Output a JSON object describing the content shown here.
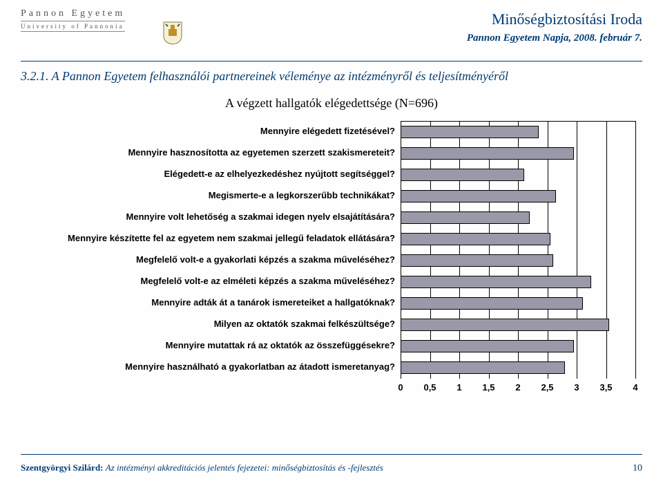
{
  "header": {
    "uni_hu": "Pannon Egyetem",
    "uni_en": "University of Pannonia",
    "dept": "Minőségbiztosítási Iroda",
    "date": "Pannon Egyetem Napja, 2008. február 7."
  },
  "section_title": "3.2.1. A Pannon Egyetem felhasználói partnereinek véleménye az intézményről és teljesítményéről",
  "subtitle": "A végzett hallgatók elégedettsége (N=696)",
  "chart": {
    "type": "horizontal-bar",
    "x_min": 0,
    "x_max": 4,
    "tick_step": 0.5,
    "ticks": [
      "0",
      "0,5",
      "1",
      "1,5",
      "2",
      "2,5",
      "3",
      "3,5",
      "4"
    ],
    "bar_color": "#9999a8",
    "bar_border": "#000000",
    "grid_color": "#000000",
    "background": "#ffffff",
    "label_fontsize": 13,
    "label_fontweight": "bold",
    "questions": [
      {
        "label": "Mennyire elégedett fizetésével?",
        "value": 2.35
      },
      {
        "label": "Mennyire hasznosította az egyetemen szerzett szakismereteit?",
        "value": 2.95
      },
      {
        "label": "Elégedett-e az elhelyezkedéshez nyújtott segítséggel?",
        "value": 2.1
      },
      {
        "label": "Megismerte-e a legkorszerűbb technikákat?",
        "value": 2.65
      },
      {
        "label": "Mennyire volt lehetőség a szakmai idegen nyelv elsajátítására?",
        "value": 2.2
      },
      {
        "label": "Mennyire készítette fel az egyetem nem szakmai jellegű feladatok ellátására?",
        "value": 2.55
      },
      {
        "label": "Megfelelő volt-e a gyakorlati képzés a szakma műveléséhez?",
        "value": 2.6
      },
      {
        "label": "Megfelelő volt-e az elméleti képzés a szakma műveléséhez?",
        "value": 3.25
      },
      {
        "label": "Mennyire adták át a tanárok ismereteiket a hallgatóknak?",
        "value": 3.1
      },
      {
        "label": "Milyen az oktatók szakmai felkészültsége?",
        "value": 3.55
      },
      {
        "label": "Mennyire mutattak rá az oktatók az összefüggésekre?",
        "value": 2.95
      },
      {
        "label": "Mennyire használható a gyakorlatban az átadott ismeretanyag?",
        "value": 2.8
      }
    ]
  },
  "footer": {
    "author": "Szentgyörgyi Szilárd: ",
    "title": "Az intézményi akkreditációs jelentés fejezetei: minőségbiztosítás és -fejlesztés",
    "page": "10"
  },
  "colors": {
    "brand": "#003b73"
  }
}
